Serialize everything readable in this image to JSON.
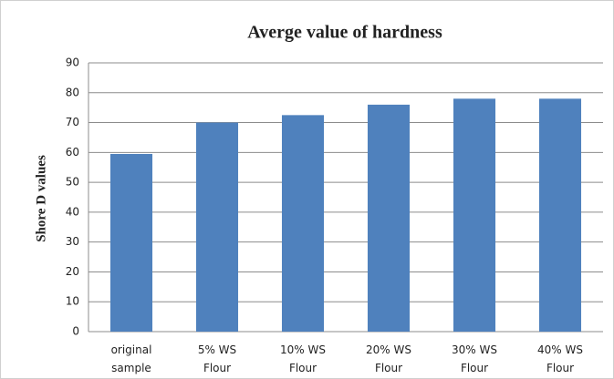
{
  "chart_data": {
    "type": "bar",
    "title": "Averge value of hardness",
    "y_label": "Shore D values",
    "categories": [
      "original sample",
      "5% WS Flour",
      "10% WS Flour",
      "20% WS Flour",
      "30% WS Flour",
      "40% WS Flour"
    ],
    "values": [
      59.5,
      70,
      72.5,
      76,
      78,
      78
    ],
    "color": "#4f81bd",
    "ylim": [
      0,
      90
    ],
    "yticks": [
      0,
      10,
      20,
      30,
      40,
      50,
      60,
      70,
      80,
      90
    ],
    "grid": true
  }
}
